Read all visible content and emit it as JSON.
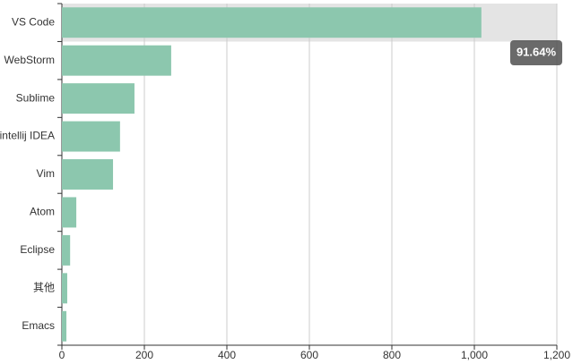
{
  "chart_data": {
    "type": "hbar",
    "categories": [
      "VS Code",
      "WebStorm",
      "Sublime",
      "intellij IDEA",
      "Vim",
      "Atom",
      "Eclipse",
      "其他",
      "Emacs"
    ],
    "values": [
      1017,
      265,
      176,
      141,
      124,
      35,
      20,
      13,
      11
    ],
    "color": "#8cc7ae",
    "xlim": [
      0,
      1200
    ],
    "xticks": [
      0,
      200,
      400,
      600,
      800,
      {
        "value": 1000,
        "label": "1,000"
      },
      {
        "value": 1200,
        "label": "1,200"
      }
    ],
    "grid": true,
    "tooltip": "91.64%"
  }
}
